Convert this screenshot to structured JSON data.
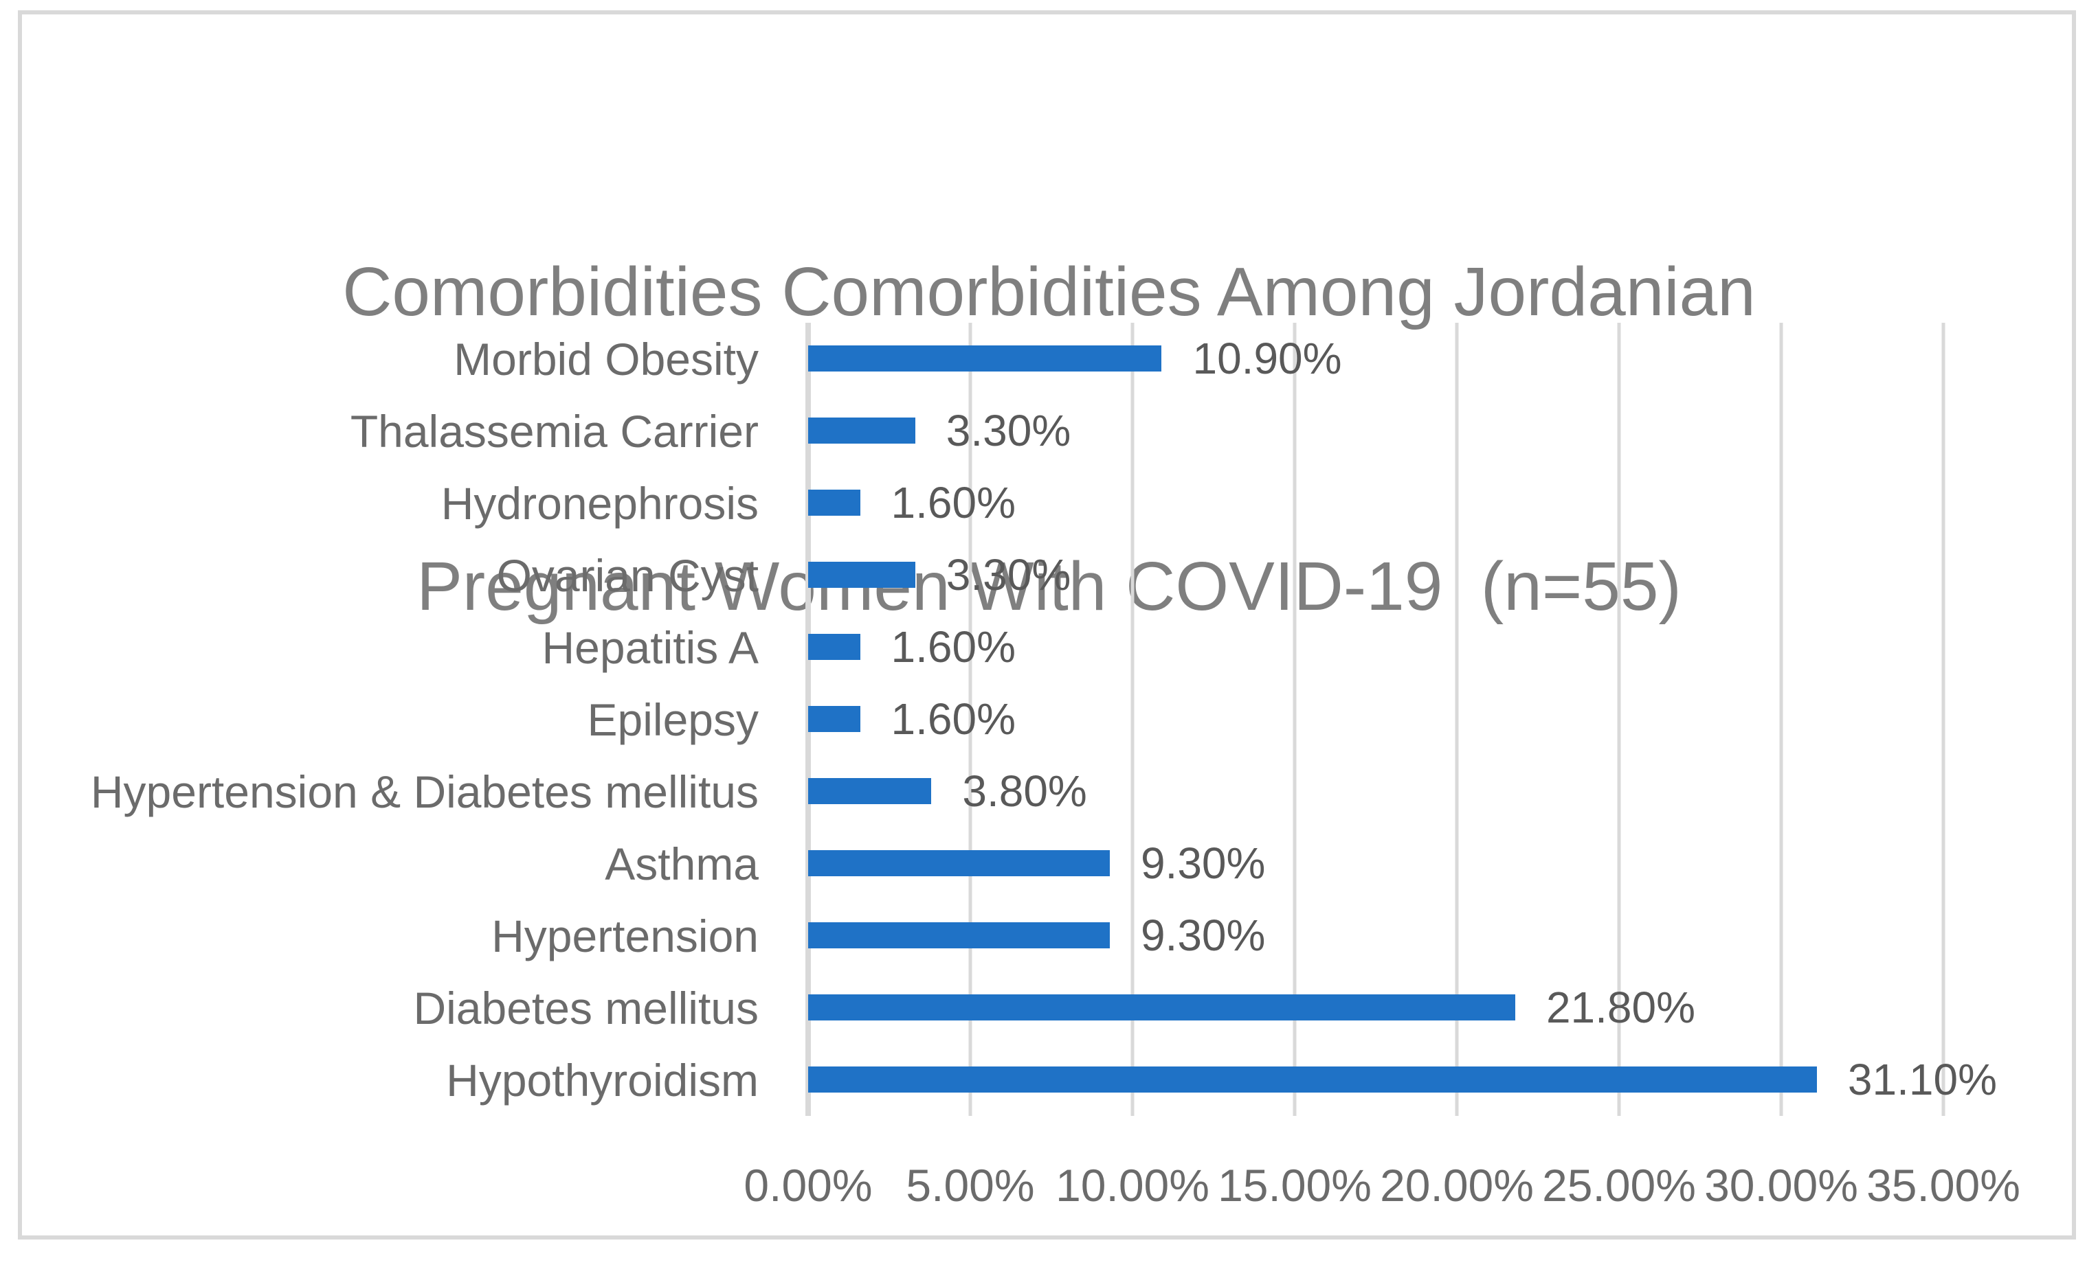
{
  "chart_data": {
    "type": "bar",
    "orientation": "horizontal",
    "title": "Comorbidities Comorbidities Among Jordanian Pregnant Women With COVID-19  (n=55)",
    "title_lines": [
      "Comorbidities Comorbidities Among Jordanian",
      "Pregnant Women With COVID-19  (n=55)"
    ],
    "categories": [
      "Morbid Obesity",
      "Thalassemia Carrier",
      "Hydronephrosis",
      "Ovarian Cyst",
      "Hepatitis A",
      "Epilepsy",
      "Hypertension & Diabetes mellitus",
      "Asthma",
      "Hypertension",
      "Diabetes mellitus",
      "Hypothyroidism"
    ],
    "values": [
      10.9,
      3.3,
      1.6,
      3.3,
      1.6,
      1.6,
      3.8,
      9.3,
      9.3,
      21.8,
      31.1
    ],
    "data_labels": [
      "10.90%",
      "3.30%",
      "1.60%",
      "3.30%",
      "1.60%",
      "1.60%",
      "3.80%",
      "9.30%",
      "9.30%",
      "21.80%",
      "31.10%"
    ],
    "x_axis": {
      "min": 0,
      "max": 35,
      "ticks": [
        0,
        5,
        10,
        15,
        20,
        25,
        30,
        35
      ],
      "tick_labels": [
        "0.00%",
        "5.00%",
        "10.00%",
        "15.00%",
        "20.00%",
        "25.00%",
        "30.00%",
        "35.00%"
      ],
      "unit": "%"
    },
    "grid": "vertical-gridlines-on",
    "legend": "none",
    "colors": {
      "bar": "#1F72C6",
      "gridline": "#D9D9D9",
      "axis_line": "#D9D9D9",
      "frame_border": "#D9D9D9",
      "title_text": "#7F7F7F",
      "category_text": "#6B6B6B",
      "tick_text": "#6B6B6B",
      "data_label_text": "#595959",
      "background": "#FFFFFF"
    }
  }
}
